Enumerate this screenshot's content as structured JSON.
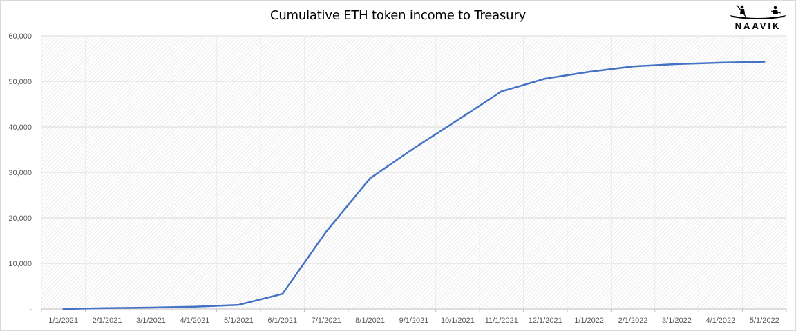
{
  "chart_data": {
    "type": "line",
    "title": "Cumulative ETH token income to Treasury",
    "xlabel": "",
    "ylabel": "",
    "categories": [
      "1/1/2021",
      "2/1/2021",
      "3/1/2021",
      "4/1/2021",
      "5/1/2021",
      "6/1/2021",
      "7/1/2021",
      "8/1/2021",
      "9/1/2021",
      "10/1/2021",
      "11/1/2021",
      "12/1/2021",
      "1/1/2022",
      "2/1/2022",
      "3/1/2022",
      "4/1/2022",
      "5/1/2022"
    ],
    "series": [
      {
        "values": [
          0,
          200,
          300,
          500,
          900,
          3300,
          17000,
          28700,
          35300,
          41500,
          47800,
          50600,
          52100,
          53300,
          53800,
          54100,
          54300
        ],
        "color": "#4472c4"
      }
    ],
    "ylim": [
      0,
      60000
    ],
    "yticks": [
      0,
      10000,
      20000,
      30000,
      40000,
      50000,
      60000
    ],
    "ytick_labels": [
      "-",
      "10,000",
      "20,000",
      "30,000",
      "40,000",
      "50,000",
      "60,000"
    ],
    "grid": true,
    "legend": "none",
    "plot_background": "hatched-light-gray"
  },
  "logo": {
    "text": "NAAVIK"
  }
}
